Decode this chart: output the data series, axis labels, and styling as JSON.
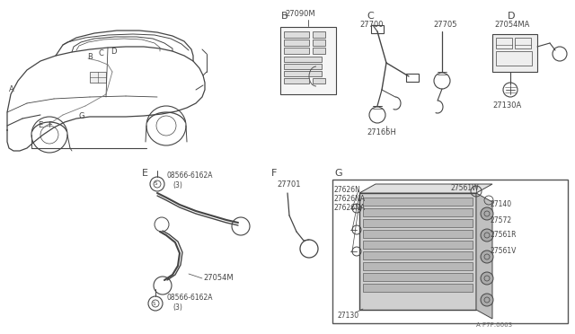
{
  "bg_color": "#ffffff",
  "line_color": "#444444",
  "gray": "#777777",
  "light_gray": "#bbbbbb",
  "ref_number": "A P7P:0063",
  "labels": {
    "B_section": "B",
    "C_section": "C",
    "D_section": "D",
    "E_section": "E",
    "F_section": "F",
    "G_section": "G",
    "p27090M": "27090M",
    "p27700": "27700",
    "p27165H": "27165H",
    "p27705": "27705",
    "p27054MA": "27054MA",
    "p27130A": "27130A",
    "p08566top": "08566-6162A",
    "p3top": "(3)",
    "p27054M": "27054M",
    "p08566bot": "08566-6162A",
    "p3bot": "(3)",
    "p27701": "27701",
    "p27626N": "27626N",
    "p27626NA1": "27626NA",
    "p27626NA2": "27626NA",
    "p27561W": "27561W",
    "p27140": "27140",
    "p27572": "27572",
    "p27561R": "27561R",
    "p27561V": "27561V",
    "p27130": "27130"
  }
}
